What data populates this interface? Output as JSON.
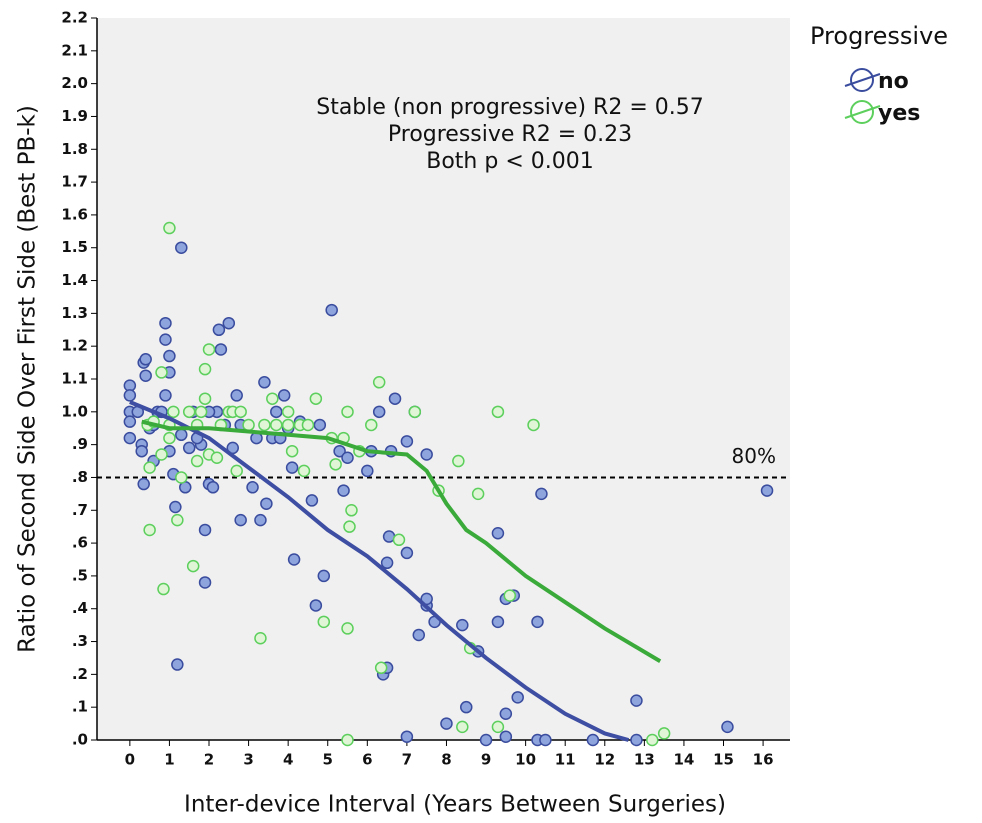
{
  "chart_data": {
    "type": "scatter",
    "x_label": "Inter-device Interval (Years Between Surgeries)",
    "y_label": "Ratio of Second Side Over First Side (Best PB-k)",
    "legend_title": "Progressive",
    "legend_position": "right",
    "annotations": [
      "Stable (non progressive) R2 = 0.57",
      "Progressive R2 = 0.23",
      "Both p < 0.001"
    ],
    "reference_line": {
      "value": 0.8,
      "label": "80%"
    },
    "xlim": [
      -0.83,
      16.68
    ],
    "ylim": [
      0,
      2.2
    ],
    "xticks": [
      0,
      1,
      2,
      3,
      4,
      5,
      6,
      7,
      8,
      9,
      10,
      11,
      12,
      13,
      14,
      15,
      16
    ],
    "yticks": [
      {
        "value": 0,
        "label": ".0"
      },
      {
        "value": 0.1,
        "label": ".1"
      },
      {
        "value": 0.2,
        "label": ".2"
      },
      {
        "value": 0.3,
        "label": ".3"
      },
      {
        "value": 0.4,
        "label": ".4"
      },
      {
        "value": 0.5,
        "label": ".5"
      },
      {
        "value": 0.6,
        "label": ".6"
      },
      {
        "value": 0.7,
        "label": ".7"
      },
      {
        "value": 0.8,
        "label": ".8"
      },
      {
        "value": 0.9,
        "label": ".9"
      },
      {
        "value": 1.0,
        "label": "1.0"
      },
      1.1,
      1.2,
      1.3,
      1.4,
      1.5,
      1.6,
      1.7,
      1.8,
      1.9,
      {
        "value": 2.0,
        "label": "2.0"
      },
      2.1,
      2.2
    ],
    "series": [
      {
        "name": "no",
        "color": "#8da4dd",
        "edge_color": "#3a4c9e",
        "x": [
          0,
          0,
          0,
          0,
          0,
          0.2,
          0.3,
          0.3,
          0.35,
          0.4,
          0.4,
          0.35,
          0.5,
          0.6,
          0.7,
          0.8,
          0.9,
          0.9,
          0.9,
          1.0,
          1.0,
          1.0,
          1.1,
          1.15,
          1.2,
          1.3,
          1.3,
          1.4,
          1.5,
          1.6,
          1.8,
          1.9,
          1.9,
          2.0,
          2.1,
          2.2,
          2.25,
          2.3,
          2.4,
          2.5,
          2.6,
          2.7,
          2.8,
          2.8,
          3.1,
          3.2,
          3.3,
          3.4,
          3.45,
          3.6,
          3.7,
          3.8,
          3.9,
          4.0,
          4.1,
          4.15,
          4.3,
          4.6,
          4.7,
          4.8,
          4.9,
          5.1,
          5.3,
          5.4,
          5.5,
          6.0,
          6.1,
          6.3,
          6.4,
          6.5,
          6.5,
          6.55,
          6.6,
          6.7,
          7.0,
          7.0,
          7.0,
          7.3,
          7.5,
          7.5,
          7.7,
          8.0,
          8.4,
          8.5,
          8.8,
          9.0,
          9.3,
          9.3,
          9.5,
          9.5,
          9.5,
          9.7,
          9.8,
          10.3,
          10.3,
          10.4,
          10.5,
          11.7,
          12.8,
          12.8,
          15.1,
          16.1,
          7.2,
          7.5,
          2.0,
          1.7,
          0.6
        ],
        "values": [
          1.08,
          1.05,
          1.0,
          0.97,
          0.92,
          1.0,
          0.9,
          0.88,
          1.15,
          1.16,
          1.11,
          0.78,
          0.95,
          0.85,
          1.0,
          1.0,
          1.27,
          1.22,
          1.05,
          1.17,
          1.12,
          0.88,
          0.81,
          0.71,
          0.23,
          1.5,
          0.93,
          0.77,
          0.89,
          1.0,
          0.9,
          0.48,
          0.64,
          0.78,
          0.77,
          1.0,
          1.25,
          1.19,
          0.96,
          1.27,
          0.89,
          1.05,
          0.67,
          0.96,
          0.77,
          0.92,
          0.67,
          1.09,
          0.72,
          0.92,
          1.0,
          0.92,
          1.05,
          0.95,
          0.83,
          0.55,
          0.97,
          0.73,
          0.41,
          0.96,
          0.5,
          1.31,
          0.88,
          0.76,
          0.86,
          0.82,
          0.88,
          1.0,
          0.2,
          0.22,
          0.54,
          0.62,
          0.88,
          1.04,
          0.91,
          0.57,
          0.01,
          0.32,
          0.41,
          0.43,
          0.36,
          0.05,
          0.35,
          0.1,
          0.27,
          0.0,
          0.63,
          0.36,
          0.43,
          0.08,
          0.01,
          0.44,
          0.13,
          0.36,
          0.0,
          0.75,
          0.0,
          0.0,
          0.12,
          0.0,
          0.04,
          0.76,
          1.0,
          0.87,
          1.0,
          0.92,
          0.96
        ]
      },
      {
        "name": "yes",
        "color": "#dff5d6",
        "edge_color": "#5ccf5c",
        "x": [
          0.45,
          0.5,
          0.5,
          0.6,
          0.8,
          0.8,
          0.85,
          1.0,
          1.0,
          1.0,
          1.1,
          1.2,
          1.3,
          1.5,
          1.6,
          1.7,
          1.7,
          1.8,
          1.9,
          1.9,
          2.0,
          2.0,
          2.2,
          2.3,
          2.5,
          2.6,
          2.7,
          2.8,
          3.0,
          3.3,
          3.4,
          3.6,
          3.7,
          4.0,
          4.0,
          4.1,
          4.3,
          4.4,
          4.5,
          4.7,
          4.9,
          5.1,
          5.2,
          5.4,
          5.5,
          5.5,
          5.5,
          5.55,
          5.6,
          5.8,
          6.1,
          6.3,
          6.35,
          6.8,
          7.2,
          7.8,
          8.3,
          8.4,
          8.6,
          8.8,
          9.3,
          9.3,
          9.6,
          10.2,
          13.2,
          13.5
        ],
        "values": [
          0.96,
          0.83,
          0.64,
          0.97,
          1.12,
          0.87,
          0.46,
          1.56,
          0.96,
          0.92,
          1.0,
          0.67,
          0.8,
          1.0,
          0.53,
          0.96,
          0.85,
          1.0,
          1.13,
          1.04,
          1.19,
          0.87,
          0.86,
          0.96,
          1.0,
          1.0,
          0.82,
          1.0,
          0.96,
          0.31,
          0.96,
          1.04,
          0.96,
          1.0,
          0.96,
          0.88,
          0.96,
          0.82,
          0.96,
          1.04,
          0.36,
          0.92,
          0.84,
          0.92,
          1.0,
          0.34,
          0.0,
          0.65,
          0.7,
          0.88,
          0.96,
          1.09,
          0.22,
          0.61,
          1.0,
          0.76,
          0.85,
          0.04,
          0.28,
          0.75,
          1.0,
          0.04,
          0.44,
          0.96,
          0.0,
          0.02
        ]
      }
    ],
    "fit_lines": [
      {
        "color": "#3d4ea3",
        "x": [
          0,
          1,
          2,
          3,
          4,
          5,
          6,
          7,
          8,
          9,
          10,
          11,
          12,
          12.6
        ],
        "values": [
          1.03,
          0.98,
          0.92,
          0.83,
          0.74,
          0.64,
          0.56,
          0.46,
          0.35,
          0.25,
          0.16,
          0.08,
          0.02,
          0.0
        ]
      },
      {
        "color": "#3aaa3a",
        "x": [
          0.3,
          1,
          2,
          3,
          4,
          5,
          6,
          7,
          7.5,
          8,
          8.5,
          9,
          10,
          11,
          12,
          13.4
        ],
        "values": [
          0.97,
          0.95,
          0.95,
          0.94,
          0.93,
          0.92,
          0.88,
          0.87,
          0.82,
          0.72,
          0.64,
          0.6,
          0.5,
          0.42,
          0.34,
          0.24
        ]
      }
    ]
  }
}
